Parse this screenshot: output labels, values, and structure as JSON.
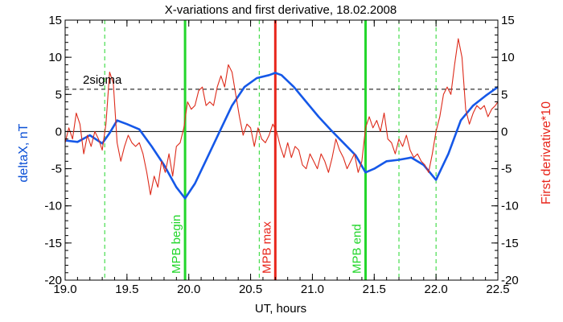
{
  "chart_data": {
    "type": "line",
    "title": "X-variations and first derivative, 18.02.2008",
    "xlabel": "UT, hours",
    "ylabel_left": "deltaX, nT",
    "ylabel_right": "First derivative*10",
    "xlim": [
      19.0,
      22.5
    ],
    "ylim": [
      -20,
      15
    ],
    "x_ticks": [
      19.0,
      19.5,
      20.0,
      20.5,
      21.0,
      21.5,
      22.0,
      22.5
    ],
    "x_tick_labels": [
      "19.0",
      "19.5",
      "20.0",
      "20.5",
      "21.0",
      "21.5",
      "22.0",
      "22.5"
    ],
    "y_ticks": [
      -20,
      -15,
      -10,
      -5,
      0,
      5,
      10,
      15
    ],
    "y_tick_labels": [
      "-20",
      "-15",
      "-10",
      "-5",
      "0",
      "5",
      "10",
      "15"
    ],
    "zero_line": 0,
    "threshold": {
      "label": "2sigma",
      "value": 5.7
    },
    "colors": {
      "deltaX": "#1558e8",
      "derivative": "#dd2a1a",
      "mpb_boundary": "#22d62b",
      "mpb_max": "#e8251b",
      "axis": "#000000"
    },
    "vertical_lines": [
      {
        "x": 19.97,
        "label": "MPB begin",
        "style": "solid",
        "color": "#22d62b"
      },
      {
        "x": 20.7,
        "label": "MPB max",
        "style": "solid",
        "color": "#e8251b"
      },
      {
        "x": 21.43,
        "label": "MPB end",
        "style": "solid",
        "color": "#22d62b"
      },
      {
        "x": 19.32,
        "label": "",
        "style": "dashed",
        "color": "#22d62b"
      },
      {
        "x": 20.57,
        "label": "",
        "style": "dashed",
        "color": "#22d62b"
      },
      {
        "x": 21.7,
        "label": "",
        "style": "dashed",
        "color": "#22d62b"
      },
      {
        "x": 22.0,
        "label": "",
        "style": "dashed",
        "color": "#22d62b"
      }
    ],
    "series": [
      {
        "key": "deltaX",
        "axis": "left",
        "x": [
          19.0,
          19.1,
          19.2,
          19.3,
          19.36,
          19.42,
          19.5,
          19.6,
          19.7,
          19.8,
          19.9,
          19.97,
          20.05,
          20.15,
          20.25,
          20.35,
          20.45,
          20.55,
          20.65,
          20.7,
          20.75,
          20.85,
          20.95,
          21.05,
          21.15,
          21.25,
          21.35,
          21.43,
          21.5,
          21.6,
          21.7,
          21.8,
          21.9,
          22.0,
          22.1,
          22.2,
          22.3,
          22.4,
          22.5
        ],
        "y": [
          -1.2,
          -1.4,
          -0.5,
          -1.6,
          -0.2,
          1.5,
          1.0,
          0.3,
          -2.0,
          -4.5,
          -7.5,
          -9.0,
          -7.0,
          -3.5,
          0.0,
          3.5,
          6.0,
          7.2,
          7.6,
          7.9,
          7.6,
          6.0,
          4.0,
          2.0,
          0.2,
          -1.5,
          -3.2,
          -5.5,
          -5.0,
          -4.0,
          -3.8,
          -3.5,
          -4.5,
          -6.5,
          -3.0,
          1.5,
          3.5,
          4.8,
          6.0
        ]
      },
      {
        "key": "derivative",
        "axis": "right",
        "x": [
          19.0,
          19.03,
          19.06,
          19.09,
          19.12,
          19.15,
          19.18,
          19.21,
          19.24,
          19.27,
          19.3,
          19.33,
          19.36,
          19.39,
          19.42,
          19.45,
          19.48,
          19.51,
          19.54,
          19.57,
          19.6,
          19.63,
          19.66,
          19.69,
          19.72,
          19.75,
          19.78,
          19.81,
          19.84,
          19.87,
          19.9,
          19.93,
          19.96,
          19.99,
          20.02,
          20.05,
          20.08,
          20.11,
          20.14,
          20.17,
          20.2,
          20.23,
          20.26,
          20.29,
          20.32,
          20.35,
          20.38,
          20.41,
          20.44,
          20.47,
          20.5,
          20.53,
          20.56,
          20.59,
          20.62,
          20.65,
          20.68,
          20.71,
          20.74,
          20.77,
          20.8,
          20.83,
          20.86,
          20.89,
          20.92,
          20.95,
          20.98,
          21.01,
          21.04,
          21.07,
          21.1,
          21.13,
          21.16,
          21.19,
          21.22,
          21.25,
          21.28,
          21.31,
          21.34,
          21.37,
          21.4,
          21.43,
          21.46,
          21.49,
          21.52,
          21.55,
          21.58,
          21.61,
          21.64,
          21.67,
          21.7,
          21.73,
          21.76,
          21.79,
          21.82,
          21.85,
          21.88,
          21.91,
          21.94,
          21.97,
          22.0,
          22.03,
          22.06,
          22.09,
          22.12,
          22.15,
          22.18,
          22.21,
          22.24,
          22.27,
          22.3,
          22.33,
          22.36,
          22.39,
          22.42,
          22.45,
          22.48,
          22.5
        ],
        "y": [
          -1.5,
          0.5,
          -1.0,
          2.5,
          1.0,
          -3.0,
          -0.5,
          -2.0,
          0.0,
          -1.0,
          -2.5,
          1.0,
          8.0,
          6.5,
          -1.5,
          -4.0,
          -2.0,
          -0.5,
          -1.5,
          -2.0,
          -1.5,
          -3.0,
          -5.5,
          -8.5,
          -6.0,
          -7.5,
          -4.0,
          -5.5,
          -3.0,
          -6.0,
          -2.0,
          -1.5,
          0.5,
          4.0,
          3.0,
          3.5,
          5.5,
          6.0,
          3.5,
          4.0,
          3.5,
          6.0,
          7.5,
          6.0,
          9.0,
          8.0,
          5.0,
          2.0,
          -0.5,
          1.0,
          0.5,
          -2.0,
          0.5,
          -1.0,
          -1.5,
          -0.5,
          1.0,
          0.0,
          -2.0,
          -3.5,
          -1.5,
          -3.5,
          -2.0,
          -2.5,
          -4.5,
          -5.0,
          -3.0,
          -4.0,
          -5.0,
          -3.0,
          -4.0,
          -5.5,
          -3.5,
          -1.0,
          -2.5,
          -3.5,
          -5.0,
          -4.0,
          -3.0,
          -5.5,
          -4.0,
          0.5,
          2.0,
          0.5,
          1.5,
          0.0,
          2.5,
          -1.0,
          -1.5,
          -3.0,
          -1.0,
          -2.0,
          -0.5,
          -2.5,
          -3.5,
          -3.0,
          -4.0,
          -4.5,
          -5.5,
          -3.0,
          0.0,
          2.0,
          5.0,
          6.0,
          5.0,
          9.0,
          12.5,
          10.0,
          3.0,
          1.0,
          2.5,
          3.5,
          3.0,
          3.5,
          2.0,
          3.0,
          3.5,
          4.0
        ]
      }
    ]
  }
}
